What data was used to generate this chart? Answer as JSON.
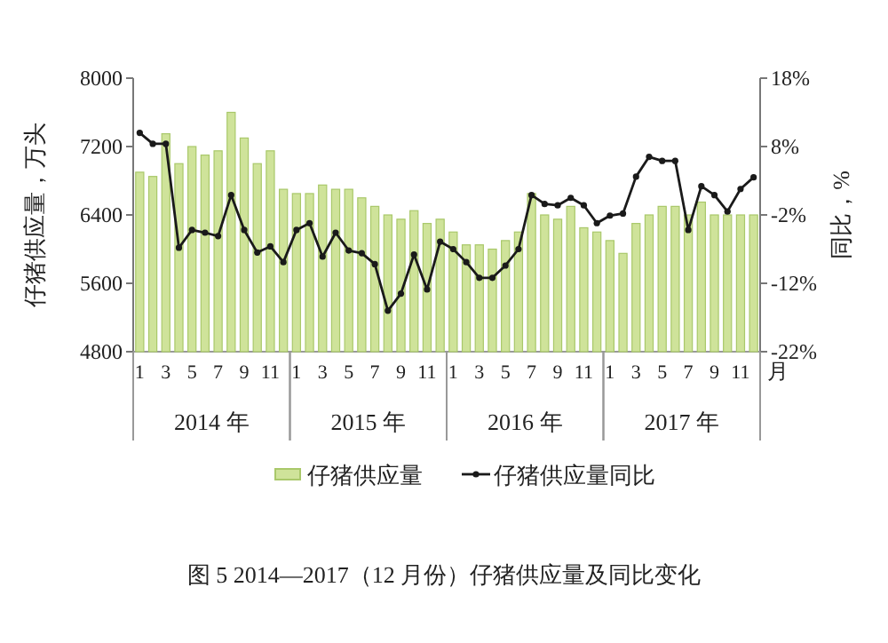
{
  "chart_data": {
    "type": "bar",
    "categories": [
      "1",
      null,
      "3",
      null,
      "5",
      null,
      "7",
      null,
      "9",
      null,
      "11",
      null,
      "1",
      null,
      "3",
      null,
      "5",
      null,
      "7",
      null,
      "9",
      null,
      "11",
      null,
      "1",
      null,
      "3",
      null,
      "5",
      null,
      "7",
      null,
      "9",
      null,
      "11",
      null,
      "1",
      null,
      "3",
      null,
      "5",
      null,
      "7",
      null,
      "9",
      null,
      "11",
      null
    ],
    "series": [
      {
        "name": "仔猪供应量",
        "axis": "y",
        "color": "#cfe39a",
        "values": [
          6900,
          6850,
          7350,
          7000,
          7200,
          7100,
          7150,
          7600,
          7300,
          7000,
          7150,
          6700,
          6650,
          6650,
          6750,
          6700,
          6700,
          6600,
          6500,
          6400,
          6350,
          6450,
          6300,
          6350,
          6200,
          6050,
          6050,
          6000,
          6100,
          6200,
          6650,
          6400,
          6350,
          6500,
          6250,
          6200,
          6100,
          5950,
          6300,
          6400,
          6500,
          6500,
          6400,
          6550,
          6400,
          6400,
          6400,
          6400
        ]
      },
      {
        "name": "仔猪供应量同比",
        "type": "line",
        "axis": "y2",
        "color": "#1a1a1a",
        "marker": "circle",
        "values": [
          10,
          8.4,
          8.4,
          -6.8,
          -4.2,
          -4.6,
          -5.1,
          0.9,
          -4.2,
          -7.5,
          -6.6,
          -8.9,
          -4.2,
          -3.2,
          -8.1,
          -4.6,
          -7.2,
          -7.6,
          -9.2,
          -16,
          -13.5,
          -7.8,
          -12.9,
          -5.9,
          -7,
          -8.9,
          -11.2,
          -11.2,
          -9.4,
          -7,
          0.9,
          -0.4,
          -0.6,
          0.5,
          -0.6,
          -3.2,
          -2.1,
          -1.8,
          3.6,
          6.5,
          5.9,
          5.9,
          -4.2,
          2.2,
          0.9,
          -1.5,
          1.8,
          3.5
        ]
      }
    ],
    "ylabel": "仔猪供应量，万头",
    "y2label": "同比，%",
    "xlabel": "月",
    "ylim": [
      4800,
      8000
    ],
    "yticks": [
      4800,
      5600,
      6400,
      7200,
      8000
    ],
    "y2lim": [
      -22,
      18
    ],
    "y2ticks": [
      {
        "value": -22,
        "label": "-22%"
      },
      {
        "value": -12,
        "label": "-12%"
      },
      {
        "value": -2,
        "label": "-2%"
      },
      {
        "value": 8,
        "label": "8%"
      },
      {
        "value": 18,
        "label": "18%"
      }
    ],
    "legend": "bottom",
    "annotations": [
      "2014 年",
      "2015 年",
      "2016 年",
      "2017 年",
      "图 5 2014—2017（12 月份）仔猪供应量及同比变化"
    ]
  }
}
